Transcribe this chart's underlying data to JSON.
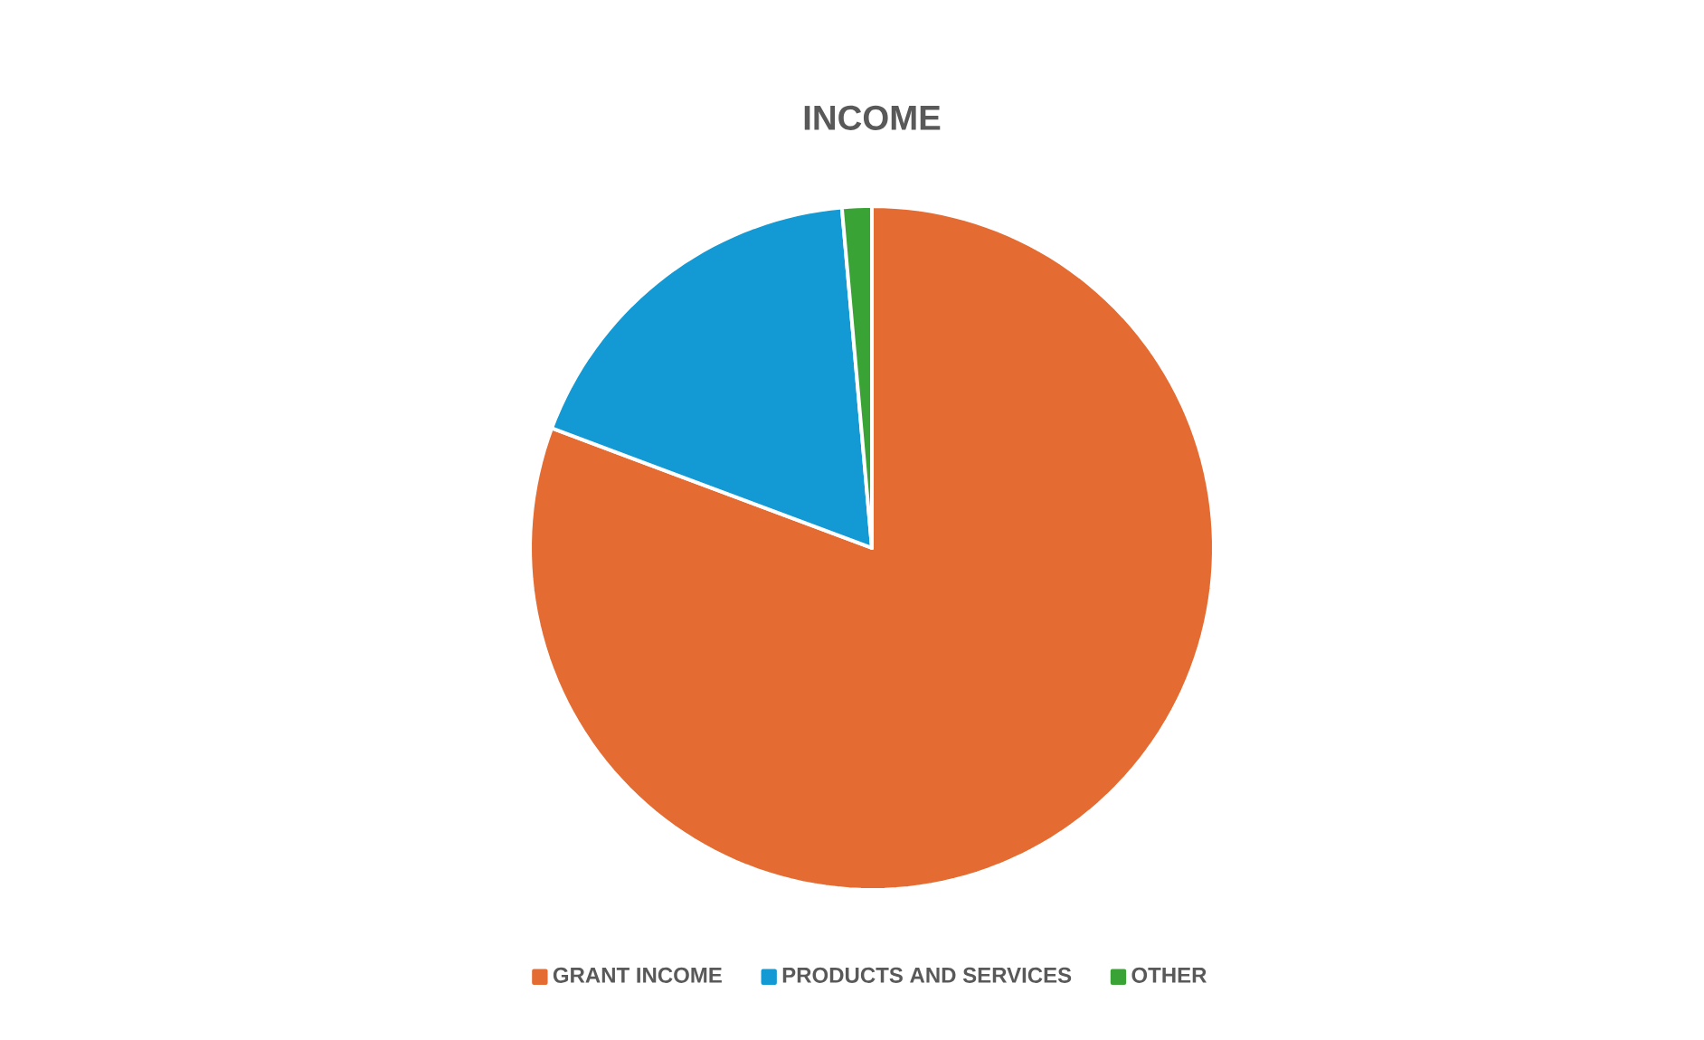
{
  "chart_data": {
    "type": "pie",
    "title": "INCOME",
    "categories": [
      "GRANT INCOME",
      "PRODUCTS AND SERVICES",
      "OTHER"
    ],
    "values": [
      80.7,
      17.9,
      1.4
    ],
    "colors": [
      "#e46c32",
      "#1399d3",
      "#3aa335"
    ],
    "legend": "bottom"
  }
}
